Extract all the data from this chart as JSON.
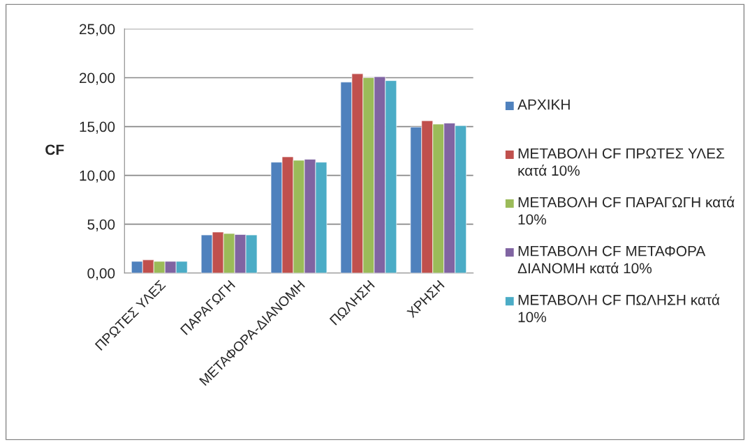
{
  "chart_data": {
    "type": "bar",
    "ylabel": "CF",
    "categories": [
      "ΠΡΩΤΕΣ ΥΛΕΣ",
      "ΠΑΡΑΓΩΓΗ",
      "ΜΕΤΑΦΟΡΑ-ΔΙΑΝΟΜΗ",
      "ΠΩΛΗΣΗ",
      "ΧΡΗΣΗ"
    ],
    "series": [
      {
        "name": "ΑΡΧΙΚΗ",
        "color": "#4f81bd",
        "values": [
          1.2,
          3.9,
          11.35,
          19.55,
          14.95
        ]
      },
      {
        "name": "ΜΕΤΑΒΟΛΗ CF ΠΡΩΤΕΣ ΥΛΕΣ κατά 10%",
        "color": "#c0504d",
        "values": [
          1.35,
          4.2,
          11.9,
          20.4,
          15.6
        ]
      },
      {
        "name": "ΜΕΤΑΒΟΛΗ CF ΠΑΡΑΓΩΓΗ κατά 10%",
        "color": "#9bbb59",
        "values": [
          1.2,
          4.05,
          11.55,
          20.0,
          15.25
        ]
      },
      {
        "name": "ΜΕΤΑΒΟΛΗ CF ΜΕΤΑΦΟΡΑ ΔΙΑΝΟΜΗ κατά 10%",
        "color": "#8064a2",
        "values": [
          1.2,
          3.95,
          11.65,
          20.1,
          15.35
        ]
      },
      {
        "name": "ΜΕΤΑΒΟΛΗ CF ΠΩΛΗΣΗ κατά 10%",
        "color": "#4bacc6",
        "values": [
          1.2,
          3.9,
          11.35,
          19.7,
          15.1
        ]
      }
    ],
    "ylim": [
      0,
      25
    ],
    "yticks": [
      {
        "value": 0,
        "label": "0,00"
      },
      {
        "value": 5,
        "label": "5,00"
      },
      {
        "value": 10,
        "label": "10,00"
      },
      {
        "value": 15,
        "label": "15,00"
      },
      {
        "value": 20,
        "label": "20,00"
      },
      {
        "value": 25,
        "label": "25,00"
      }
    ],
    "grid": "y",
    "legend": "right"
  }
}
